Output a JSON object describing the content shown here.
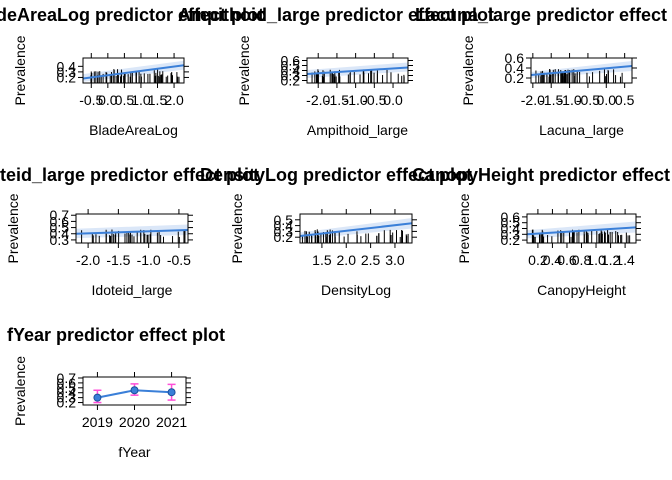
{
  "chart_data": [
    {
      "type": "line",
      "title": "BladeAreaLog predictor effect plot",
      "xlabel": "BladeAreaLog",
      "ylabel": "Prevalence",
      "xlim": [
        -0.75,
        2.3
      ],
      "ylim": [
        0.1,
        0.55
      ],
      "xticks": [
        -0.5,
        0.0,
        0.5,
        1.0,
        1.5,
        2.0
      ],
      "xtick_labels": [
        "-0.5",
        "0.0",
        "0.5",
        "1.0",
        "1.5",
        "2.0"
      ],
      "yticks": [
        0.2,
        0.3,
        0.4
      ],
      "ytick_labels": [
        "0.2",
        "0.3",
        "0.4"
      ],
      "fit_x": [
        -0.75,
        2.3
      ],
      "fit_y": [
        0.18,
        0.42
      ],
      "band_lower": [
        0.12,
        0.34
      ],
      "band_upper": [
        0.26,
        0.5
      ],
      "rug_seed": 11,
      "rug_count": 60,
      "rug_range": [
        -0.6,
        2.2
      ]
    },
    {
      "type": "line",
      "title": "Ampithoid_large predictor effect plot",
      "xlabel": "Ampithoid_large",
      "ylabel": "Prevalence",
      "xlim": [
        -2.3,
        0.4
      ],
      "ylim": [
        0.15,
        0.65
      ],
      "xticks": [
        -2.0,
        -1.5,
        -1.0,
        -0.5,
        0.0
      ],
      "xtick_labels": [
        "-2.0",
        "-1.5",
        "-1.0",
        "-0.5",
        "0.0"
      ],
      "yticks": [
        0.2,
        0.3,
        0.4,
        0.5,
        0.6
      ],
      "ytick_labels": [
        "0.2",
        "0.3",
        "0.4",
        "0.5",
        "0.6"
      ],
      "fit_x": [
        -2.3,
        0.4
      ],
      "fit_y": [
        0.33,
        0.46
      ],
      "band_lower": [
        0.25,
        0.38
      ],
      "band_upper": [
        0.41,
        0.56
      ],
      "rug_seed": 23,
      "rug_count": 45,
      "rug_range": [
        -2.2,
        0.3
      ]
    },
    {
      "type": "line",
      "title": "Lacuna_large predictor effect plot",
      "xlabel": "Lacuna_large",
      "ylabel": "Prevalence",
      "xlim": [
        -2.05,
        0.7
      ],
      "ylim": [
        0.1,
        0.6
      ],
      "xticks": [
        -2.0,
        -1.5,
        -1.0,
        -0.5,
        0.0,
        0.5
      ],
      "xtick_labels": [
        "-2.0",
        "-1.5",
        "-1.0",
        "-0.5",
        "0.0",
        "0.5"
      ],
      "yticks": [
        0.2,
        0.4,
        0.6
      ],
      "ytick_labels": [
        "0.2",
        "0.4",
        "0.6"
      ],
      "fit_x": [
        -2.05,
        0.7
      ],
      "fit_y": [
        0.26,
        0.44
      ],
      "band_lower": [
        0.2,
        0.34
      ],
      "band_upper": [
        0.32,
        0.54
      ],
      "rug_seed": 37,
      "rug_count": 55,
      "rug_range": [
        -1.95,
        0.6
      ]
    },
    {
      "type": "line",
      "title": "Idoteid_large predictor effect plot",
      "xlabel": "Idoteid_large",
      "ylabel": "Prevalence",
      "xlim": [
        -2.2,
        -0.35
      ],
      "ylim": [
        0.25,
        0.72
      ],
      "xticks": [
        -2.0,
        -1.5,
        -1.0,
        -0.5
      ],
      "xtick_labels": [
        "-2.0",
        "-1.5",
        "-1.0",
        "-0.5"
      ],
      "yticks": [
        0.3,
        0.4,
        0.5,
        0.6,
        0.7
      ],
      "ytick_labels": [
        "0.3",
        "0.4",
        "0.5",
        "0.6",
        "0.7"
      ],
      "fit_x": [
        -2.2,
        -0.35
      ],
      "fit_y": [
        0.4,
        0.46
      ],
      "band_lower": [
        0.33,
        0.38
      ],
      "band_upper": [
        0.48,
        0.55
      ],
      "rug_seed": 51,
      "rug_count": 40,
      "rug_range": [
        -2.15,
        -0.4
      ]
    },
    {
      "type": "line",
      "title": "DensityLog predictor effect plot",
      "xlabel": "DensityLog",
      "ylabel": "Prevalence",
      "xlim": [
        1.05,
        3.35
      ],
      "ylim": [
        0.1,
        0.6
      ],
      "xticks": [
        1.5,
        2.0,
        2.5,
        3.0
      ],
      "xtick_labels": [
        "1.5",
        "2.0",
        "2.5",
        "3.0"
      ],
      "yticks": [
        0.2,
        0.3,
        0.4,
        0.5
      ],
      "ytick_labels": [
        "0.2",
        "0.3",
        "0.4",
        "0.5"
      ],
      "fit_x": [
        1.05,
        3.35
      ],
      "fit_y": [
        0.22,
        0.44
      ],
      "band_lower": [
        0.16,
        0.35
      ],
      "band_upper": [
        0.28,
        0.53
      ],
      "rug_seed": 67,
      "rug_count": 50,
      "rug_range": [
        1.1,
        3.3
      ]
    },
    {
      "type": "line",
      "title": "CanopyHeight predictor effect plot",
      "xlabel": "CanopyHeight",
      "ylabel": "Prevalence",
      "xlim": [
        0.05,
        1.55
      ],
      "ylim": [
        0.15,
        0.65
      ],
      "xticks": [
        0.2,
        0.4,
        0.6,
        0.8,
        1.0,
        1.2,
        1.4
      ],
      "xtick_labels": [
        "0.2",
        "0.4",
        "0.6",
        "0.8",
        "1.0",
        "1.2",
        "1.4"
      ],
      "yticks": [
        0.2,
        0.3,
        0.4,
        0.5,
        0.6
      ],
      "ytick_labels": [
        "0.2",
        "0.3",
        "0.4",
        "0.5",
        "0.6"
      ],
      "fit_x": [
        0.05,
        1.55
      ],
      "fit_y": [
        0.3,
        0.42
      ],
      "band_lower": [
        0.23,
        0.33
      ],
      "band_upper": [
        0.37,
        0.52
      ],
      "rug_seed": 83,
      "rug_count": 55,
      "rug_range": [
        0.1,
        1.5
      ]
    },
    {
      "type": "scatter",
      "title": "fYear predictor effect plot",
      "xlabel": "fYear",
      "ylabel": "Prevalence",
      "categories": [
        "2019",
        "2020",
        "2021"
      ],
      "values": [
        0.3,
        0.45,
        0.41
      ],
      "lower": [
        0.2,
        0.35,
        0.25
      ],
      "upper": [
        0.45,
        0.58,
        0.57
      ],
      "ylim": [
        0.15,
        0.72
      ],
      "yticks": [
        0.2,
        0.3,
        0.4,
        0.5,
        0.6,
        0.7
      ],
      "ytick_labels": [
        "0.2",
        "0.3",
        "0.4",
        "0.5",
        "0.6",
        "0.7"
      ]
    }
  ],
  "colors": {
    "line": "#3a7fd8",
    "band": "#dbe7f8",
    "point": "#3a7fd8",
    "errorbar": "#ff4fd8",
    "axis": "#000000",
    "rug": "#000000"
  }
}
